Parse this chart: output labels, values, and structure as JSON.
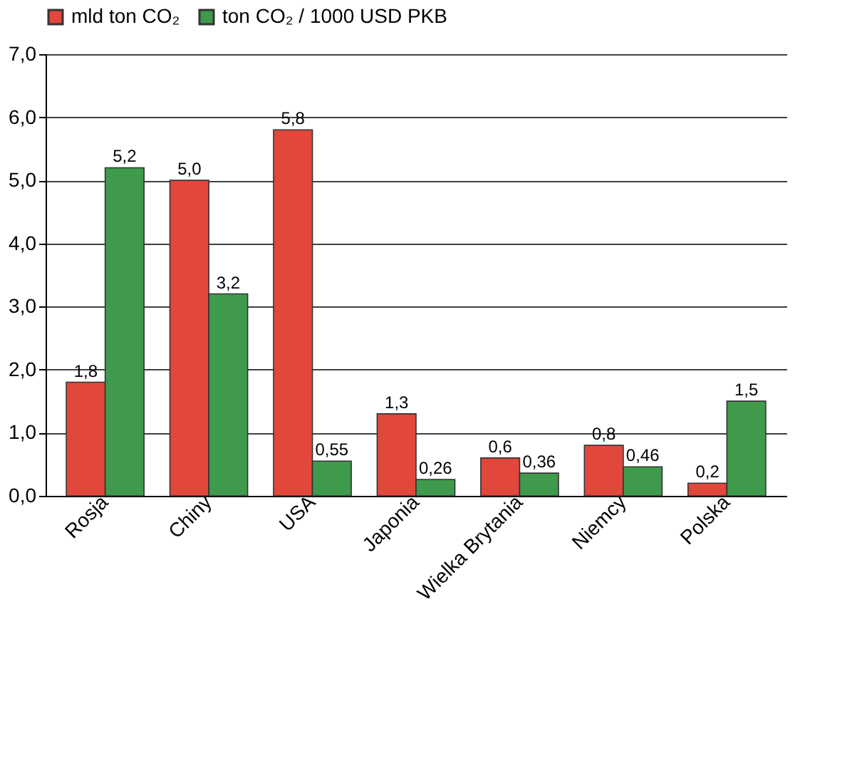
{
  "chart_data": {
    "type": "bar",
    "categories": [
      "Rosja",
      "Chiny",
      "USA",
      "Japonia",
      "Wielka Brytania",
      "Niemcy",
      "Polska"
    ],
    "series": [
      {
        "name": "mld ton CO₂",
        "color": "#e2473b",
        "values": [
          1.8,
          5.0,
          5.8,
          1.3,
          0.6,
          0.8,
          0.2
        ],
        "value_labels": [
          "1,8",
          "5,0",
          "5,8",
          "1,3",
          "0,6",
          "0,8",
          "0,2"
        ]
      },
      {
        "name": "ton CO₂ / 1000 USD PKB",
        "color": "#3f9a4c",
        "values": [
          5.2,
          3.2,
          0.55,
          0.26,
          0.36,
          0.46,
          1.5
        ],
        "value_labels": [
          "5,2",
          "3,2",
          "0,55",
          "0,26",
          "0,36",
          "0,46",
          "1,5"
        ]
      }
    ],
    "ylim": [
      0,
      7
    ],
    "yticks": [
      {
        "value": 0,
        "label": "0,0"
      },
      {
        "value": 1,
        "label": "1,0"
      },
      {
        "value": 2,
        "label": "2,0"
      },
      {
        "value": 3,
        "label": "3,0"
      },
      {
        "value": 4,
        "label": "4,0"
      },
      {
        "value": 5,
        "label": "5,0"
      },
      {
        "value": 6,
        "label": "6,0"
      },
      {
        "value": 7,
        "label": "7,0"
      }
    ],
    "grid": "y",
    "legend": "top"
  }
}
